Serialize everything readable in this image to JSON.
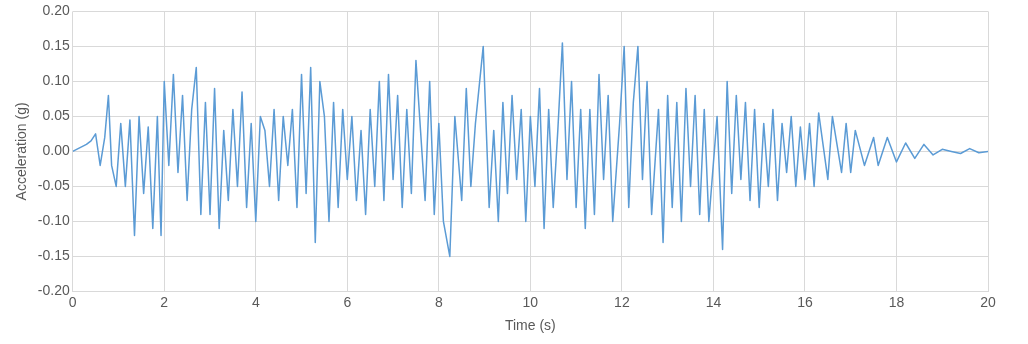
{
  "chart_data": {
    "type": "line",
    "xlabel": "Time (s)",
    "ylabel": "Acceleration (g)",
    "xlim": [
      0,
      20
    ],
    "xticks": [
      0,
      2,
      4,
      6,
      8,
      10,
      12,
      14,
      16,
      18,
      20
    ],
    "ylim": [
      -0.2,
      0.2
    ],
    "yticks": [
      {
        "value": -0.2,
        "label": "-0.20"
      },
      {
        "value": -0.15,
        "label": "-0.15"
      },
      {
        "value": -0.1,
        "label": "-0.10"
      },
      {
        "value": -0.05,
        "label": "-0.05"
      },
      {
        "value": 0,
        "label": "0.00"
      },
      {
        "value": 0.05,
        "label": "0.05"
      },
      {
        "value": 0.1,
        "label": "0.10"
      },
      {
        "value": 0.15,
        "label": "0.15"
      },
      {
        "value": 0.2,
        "label": "0.20"
      }
    ],
    "grid": true,
    "legend": false,
    "marker": "none",
    "line_style": "solid",
    "x": [
      0,
      0.15,
      0.3,
      0.4,
      0.5,
      0.6,
      0.7,
      0.78,
      0.85,
      0.95,
      1.05,
      1.15,
      1.25,
      1.35,
      1.45,
      1.55,
      1.65,
      1.75,
      1.85,
      1.93,
      2.0,
      2.1,
      2.2,
      2.3,
      2.4,
      2.5,
      2.6,
      2.7,
      2.8,
      2.9,
      3.0,
      3.1,
      3.2,
      3.3,
      3.4,
      3.5,
      3.6,
      3.7,
      3.8,
      3.9,
      4.0,
      4.1,
      4.2,
      4.3,
      4.4,
      4.5,
      4.6,
      4.7,
      4.8,
      4.9,
      5.0,
      5.1,
      5.2,
      5.3,
      5.4,
      5.5,
      5.6,
      5.7,
      5.8,
      5.9,
      6.0,
      6.1,
      6.2,
      6.3,
      6.4,
      6.5,
      6.6,
      6.7,
      6.8,
      6.9,
      7.0,
      7.1,
      7.2,
      7.3,
      7.4,
      7.5,
      7.6,
      7.7,
      7.8,
      7.9,
      8.0,
      8.1,
      8.24,
      8.35,
      8.5,
      8.6,
      8.7,
      8.8,
      8.97,
      9.1,
      9.2,
      9.3,
      9.4,
      9.5,
      9.6,
      9.7,
      9.8,
      9.9,
      10.0,
      10.1,
      10.2,
      10.3,
      10.4,
      10.5,
      10.6,
      10.7,
      10.8,
      10.9,
      11.0,
      11.1,
      11.2,
      11.3,
      11.4,
      11.5,
      11.6,
      11.7,
      11.8,
      11.95,
      12.05,
      12.15,
      12.25,
      12.35,
      12.45,
      12.55,
      12.65,
      12.8,
      12.9,
      13.0,
      13.1,
      13.2,
      13.3,
      13.4,
      13.5,
      13.6,
      13.7,
      13.8,
      13.9,
      14.08,
      14.2,
      14.3,
      14.4,
      14.5,
      14.6,
      14.7,
      14.8,
      14.9,
      15.0,
      15.1,
      15.2,
      15.3,
      15.4,
      15.5,
      15.6,
      15.7,
      15.8,
      15.9,
      16.0,
      16.1,
      16.2,
      16.3,
      16.5,
      16.6,
      16.8,
      16.9,
      17.0,
      17.1,
      17.3,
      17.5,
      17.6,
      17.8,
      18.0,
      18.2,
      18.4,
      18.6,
      18.8,
      19.0,
      19.2,
      19.4,
      19.6,
      19.8,
      20.0
    ],
    "series": [
      {
        "color": "#5b9bd5",
        "values": [
          0,
          0.005,
          0.01,
          0.015,
          0.025,
          -0.02,
          0.02,
          0.08,
          -0.02,
          -0.05,
          0.04,
          -0.05,
          0.045,
          -0.12,
          0.05,
          -0.06,
          0.035,
          -0.11,
          0.05,
          -0.12,
          0.1,
          -0.02,
          0.11,
          -0.03,
          0.08,
          -0.07,
          0.06,
          0.12,
          -0.09,
          0.07,
          -0.09,
          0.09,
          -0.11,
          0.03,
          -0.07,
          0.06,
          -0.05,
          0.085,
          -0.08,
          0.04,
          -0.1,
          0.05,
          0.03,
          -0.05,
          0.06,
          -0.07,
          0.05,
          -0.02,
          0.06,
          -0.08,
          0.11,
          -0.06,
          0.12,
          -0.13,
          0.1,
          0.05,
          -0.1,
          0.07,
          -0.08,
          0.06,
          -0.04,
          0.05,
          -0.07,
          0.03,
          -0.09,
          0.06,
          -0.05,
          0.1,
          -0.07,
          0.11,
          -0.04,
          0.08,
          -0.08,
          0.06,
          -0.06,
          0.13,
          0.03,
          -0.07,
          0.1,
          -0.09,
          0.04,
          -0.1,
          -0.15,
          0.05,
          -0.07,
          0.09,
          -0.05,
          0.04,
          0.15,
          -0.08,
          0.03,
          -0.1,
          0.07,
          -0.06,
          0.08,
          -0.04,
          0.06,
          -0.1,
          0.05,
          -0.05,
          0.09,
          -0.11,
          0.06,
          -0.08,
          0.03,
          0.155,
          -0.04,
          0.1,
          -0.08,
          0.06,
          -0.11,
          0.06,
          -0.09,
          0.11,
          -0.04,
          0.08,
          -0.1,
          0.04,
          0.15,
          -0.08,
          0.07,
          0.15,
          -0.04,
          0.1,
          -0.09,
          0.06,
          -0.13,
          0.08,
          -0.08,
          0.07,
          -0.1,
          0.09,
          -0.05,
          0.08,
          -0.09,
          0.06,
          -0.1,
          0.05,
          -0.14,
          0.1,
          -0.06,
          0.08,
          -0.04,
          0.07,
          -0.07,
          0.06,
          -0.08,
          0.04,
          -0.05,
          0.06,
          -0.07,
          0.04,
          -0.03,
          0.05,
          -0.05,
          0.035,
          -0.04,
          0.04,
          -0.05,
          0.055,
          -0.04,
          0.05,
          -0.03,
          0.04,
          -0.03,
          0.03,
          -0.02,
          0.02,
          -0.02,
          0.02,
          -0.015,
          0.012,
          -0.01,
          0.01,
          -0.005,
          0.003,
          0,
          -0.003,
          0.004,
          -0.002,
          0
        ]
      }
    ]
  }
}
